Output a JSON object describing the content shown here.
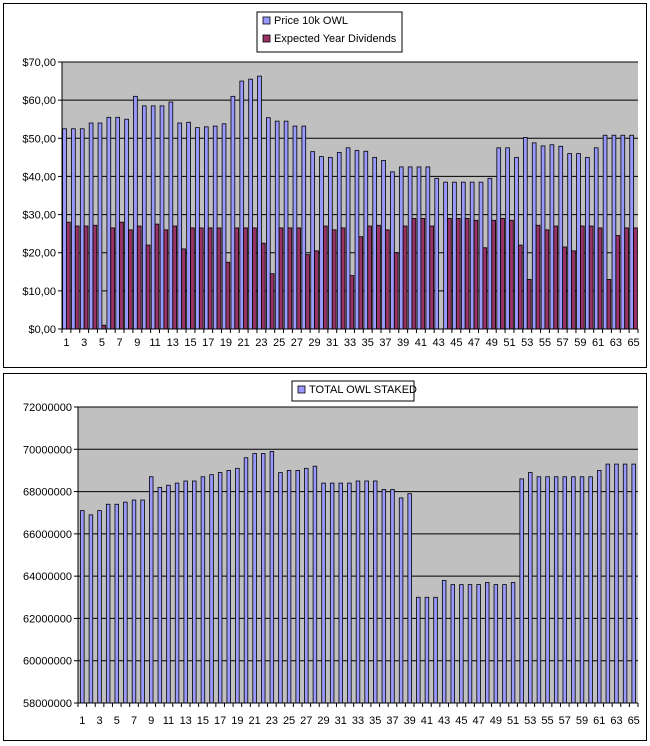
{
  "colors": {
    "plot_bg": "#c0c0c0",
    "price_bar": "#9999ff",
    "dividend_bar": "#993366",
    "staked_bar": "#9999ff",
    "bar_stroke": "#000000",
    "grid": "#000000"
  },
  "chart_data": [
    {
      "type": "bar",
      "x_tick_labels": [
        "1",
        "3",
        "5",
        "7",
        "9",
        "11",
        "13",
        "15",
        "17",
        "19",
        "21",
        "23",
        "25",
        "27",
        "29",
        "31",
        "33",
        "35",
        "37",
        "39",
        "41",
        "43",
        "45",
        "47",
        "49",
        "51",
        "53",
        "55",
        "57",
        "59",
        "61",
        "63",
        "65"
      ],
      "x": [
        1,
        2,
        3,
        4,
        5,
        6,
        7,
        8,
        9,
        10,
        11,
        12,
        13,
        14,
        15,
        16,
        17,
        18,
        19,
        20,
        21,
        22,
        23,
        24,
        25,
        26,
        27,
        28,
        29,
        30,
        31,
        32,
        33,
        34,
        35,
        36,
        37,
        38,
        39,
        40,
        41,
        42,
        43,
        44,
        45,
        46,
        47,
        48,
        49,
        50,
        51,
        52,
        53,
        54,
        55,
        56,
        57,
        58,
        59,
        60,
        61,
        62,
        63,
        64,
        65
      ],
      "y_tick_labels": [
        "$0,00",
        "$10,00",
        "$20,00",
        "$30,00",
        "$40,00",
        "$50,00",
        "$60,00",
        "$70,00"
      ],
      "ylim": [
        0,
        70
      ],
      "grid": true,
      "legend_position": "top",
      "series": [
        {
          "name": "Price 10k OWL",
          "color_key": "price_bar",
          "values": [
            52.5,
            52.5,
            52.5,
            54,
            54,
            55.5,
            55.5,
            55,
            61,
            58.5,
            58.5,
            58.5,
            59.5,
            54,
            54.2,
            52.8,
            53,
            53.2,
            53.8,
            61,
            65,
            65.5,
            66.3,
            55.4,
            54.5,
            54.5,
            53.2,
            53.2,
            46.5,
            45.2,
            45,
            46.3,
            47.5,
            46.8,
            46.6,
            45,
            44.2,
            41.2,
            42.5,
            42.5,
            42.5,
            42.5,
            39.5,
            38.5,
            38.5,
            38.5,
            38.5,
            38.5,
            39.5,
            47.5,
            47.5,
            45,
            50.2,
            48.8,
            48,
            48.3,
            47.9,
            46,
            46,
            45,
            47.5,
            50.8,
            50.8,
            50.8,
            50.8
          ]
        },
        {
          "name": "Expected Year Dividends",
          "color_key": "dividend_bar",
          "values": [
            28,
            27,
            27,
            27.2,
            1,
            26.5,
            28,
            26,
            27,
            22,
            27.5,
            26,
            27,
            21,
            26.5,
            26.5,
            26.5,
            26.5,
            17.5,
            26.5,
            26.5,
            26.5,
            22.5,
            14.5,
            26.5,
            26.5,
            26.5,
            19.5,
            20.5,
            27,
            26,
            26.5,
            14,
            24.2,
            27,
            27.2,
            26,
            20,
            27,
            29,
            29,
            27,
            0,
            29,
            29,
            29,
            28.5,
            21.3,
            28.5,
            29,
            28.5,
            22,
            13,
            27.2,
            26,
            27,
            21.5,
            20.5,
            27,
            27,
            26.5,
            13,
            24.5,
            26.5,
            26.5
          ]
        }
      ]
    },
    {
      "type": "bar",
      "x_tick_labels": [
        "1",
        "3",
        "5",
        "7",
        "9",
        "11",
        "13",
        "15",
        "17",
        "19",
        "21",
        "23",
        "25",
        "27",
        "29",
        "31",
        "33",
        "35",
        "37",
        "39",
        "41",
        "43",
        "45",
        "47",
        "49",
        "51",
        "53",
        "55",
        "57",
        "59",
        "61",
        "63",
        "65"
      ],
      "x": [
        1,
        2,
        3,
        4,
        5,
        6,
        7,
        8,
        9,
        10,
        11,
        12,
        13,
        14,
        15,
        16,
        17,
        18,
        19,
        20,
        21,
        22,
        23,
        24,
        25,
        26,
        27,
        28,
        29,
        30,
        31,
        32,
        33,
        34,
        35,
        36,
        37,
        38,
        39,
        40,
        41,
        42,
        43,
        44,
        45,
        46,
        47,
        48,
        49,
        50,
        51,
        52,
        53,
        54,
        55,
        56,
        57,
        58,
        59,
        60,
        61,
        62,
        63,
        64,
        65
      ],
      "y_tick_labels": [
        "58000000",
        "60000000",
        "62000000",
        "64000000",
        "66000000",
        "68000000",
        "70000000",
        "72000000"
      ],
      "ylim": [
        58000000,
        72000000
      ],
      "grid": true,
      "legend_position": "top",
      "series": [
        {
          "name": "TOTAL OWL STAKED",
          "color_key": "staked_bar",
          "values": [
            67100000,
            66900000,
            67100000,
            67400000,
            67400000,
            67500000,
            67600000,
            67600000,
            68700000,
            68200000,
            68300000,
            68400000,
            68500000,
            68500000,
            68700000,
            68800000,
            68900000,
            69000000,
            69100000,
            69600000,
            69800000,
            69800000,
            69900000,
            68900000,
            69000000,
            69000000,
            69100000,
            69200000,
            68400000,
            68400000,
            68400000,
            68400000,
            68500000,
            68500000,
            68500000,
            68100000,
            68100000,
            67700000,
            67900000,
            63000000,
            63000000,
            63000000,
            63800000,
            63600000,
            63600000,
            63600000,
            63600000,
            63700000,
            63600000,
            63600000,
            63700000,
            68600000,
            68900000,
            68700000,
            68700000,
            68700000,
            68700000,
            68700000,
            68700000,
            68700000,
            69000000,
            69300000,
            69300000,
            69300000,
            69300000
          ]
        }
      ]
    }
  ]
}
